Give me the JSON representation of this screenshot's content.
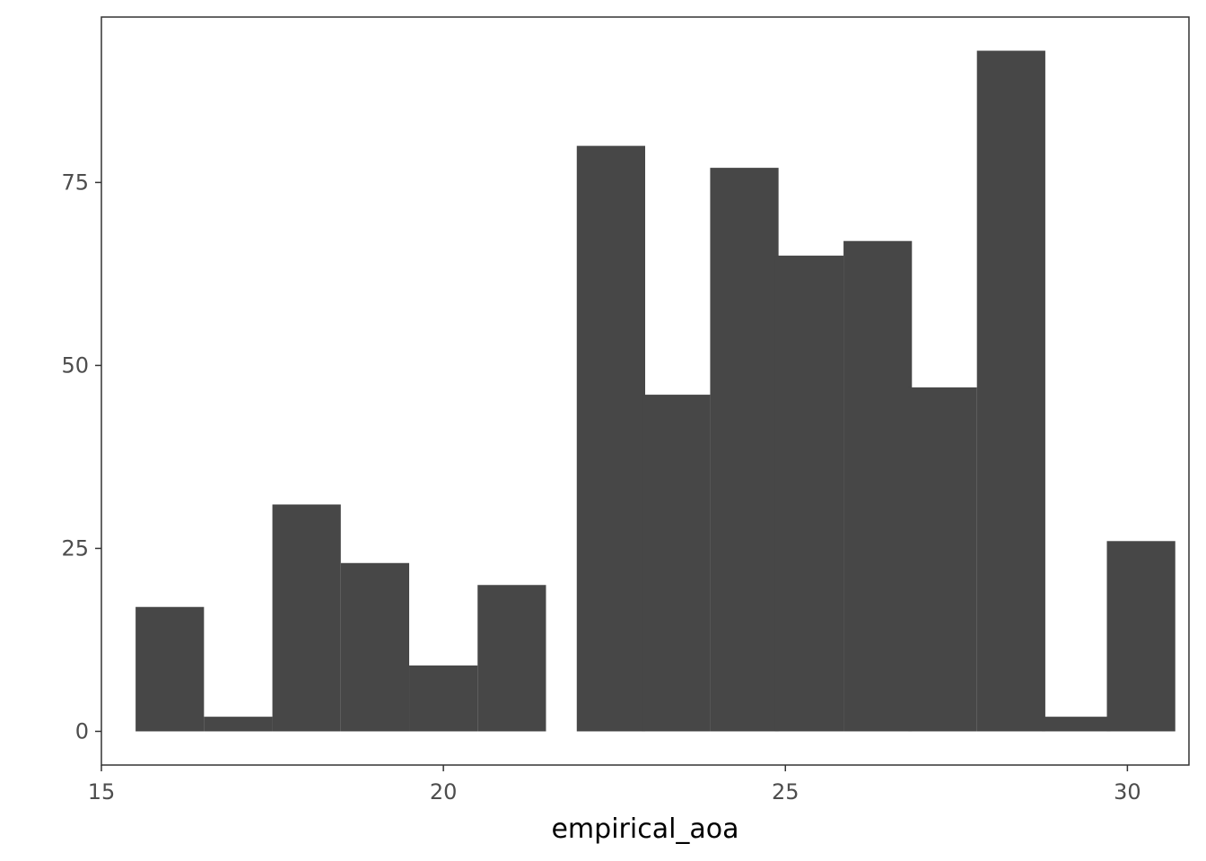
{
  "chart_data": {
    "type": "bar",
    "title": "",
    "xlabel": "empirical_aoa",
    "ylabel": "",
    "xlim": [
      15,
      30.9
    ],
    "ylim": [
      -4.6,
      97.6
    ],
    "grid": false,
    "bar_width": 1.0,
    "bar_color": "#474747",
    "frame_color": "#333333",
    "x_ticks": [
      15,
      20,
      25,
      30
    ],
    "x_tick_labels": [
      "15",
      "20",
      "25",
      "30"
    ],
    "y_ticks": [
      0,
      25,
      50,
      75
    ],
    "y_tick_labels": [
      "0",
      "25",
      "50",
      "75"
    ],
    "x": [
      16,
      17,
      18,
      19,
      20,
      21,
      22.45,
      23.4,
      24.4,
      25.35,
      26.35,
      27.3,
      28.3,
      29.25,
      30.2
    ],
    "values": [
      17,
      2,
      31,
      23,
      9,
      20,
      80,
      46,
      77,
      65,
      67,
      47,
      93,
      2,
      26
    ]
  }
}
